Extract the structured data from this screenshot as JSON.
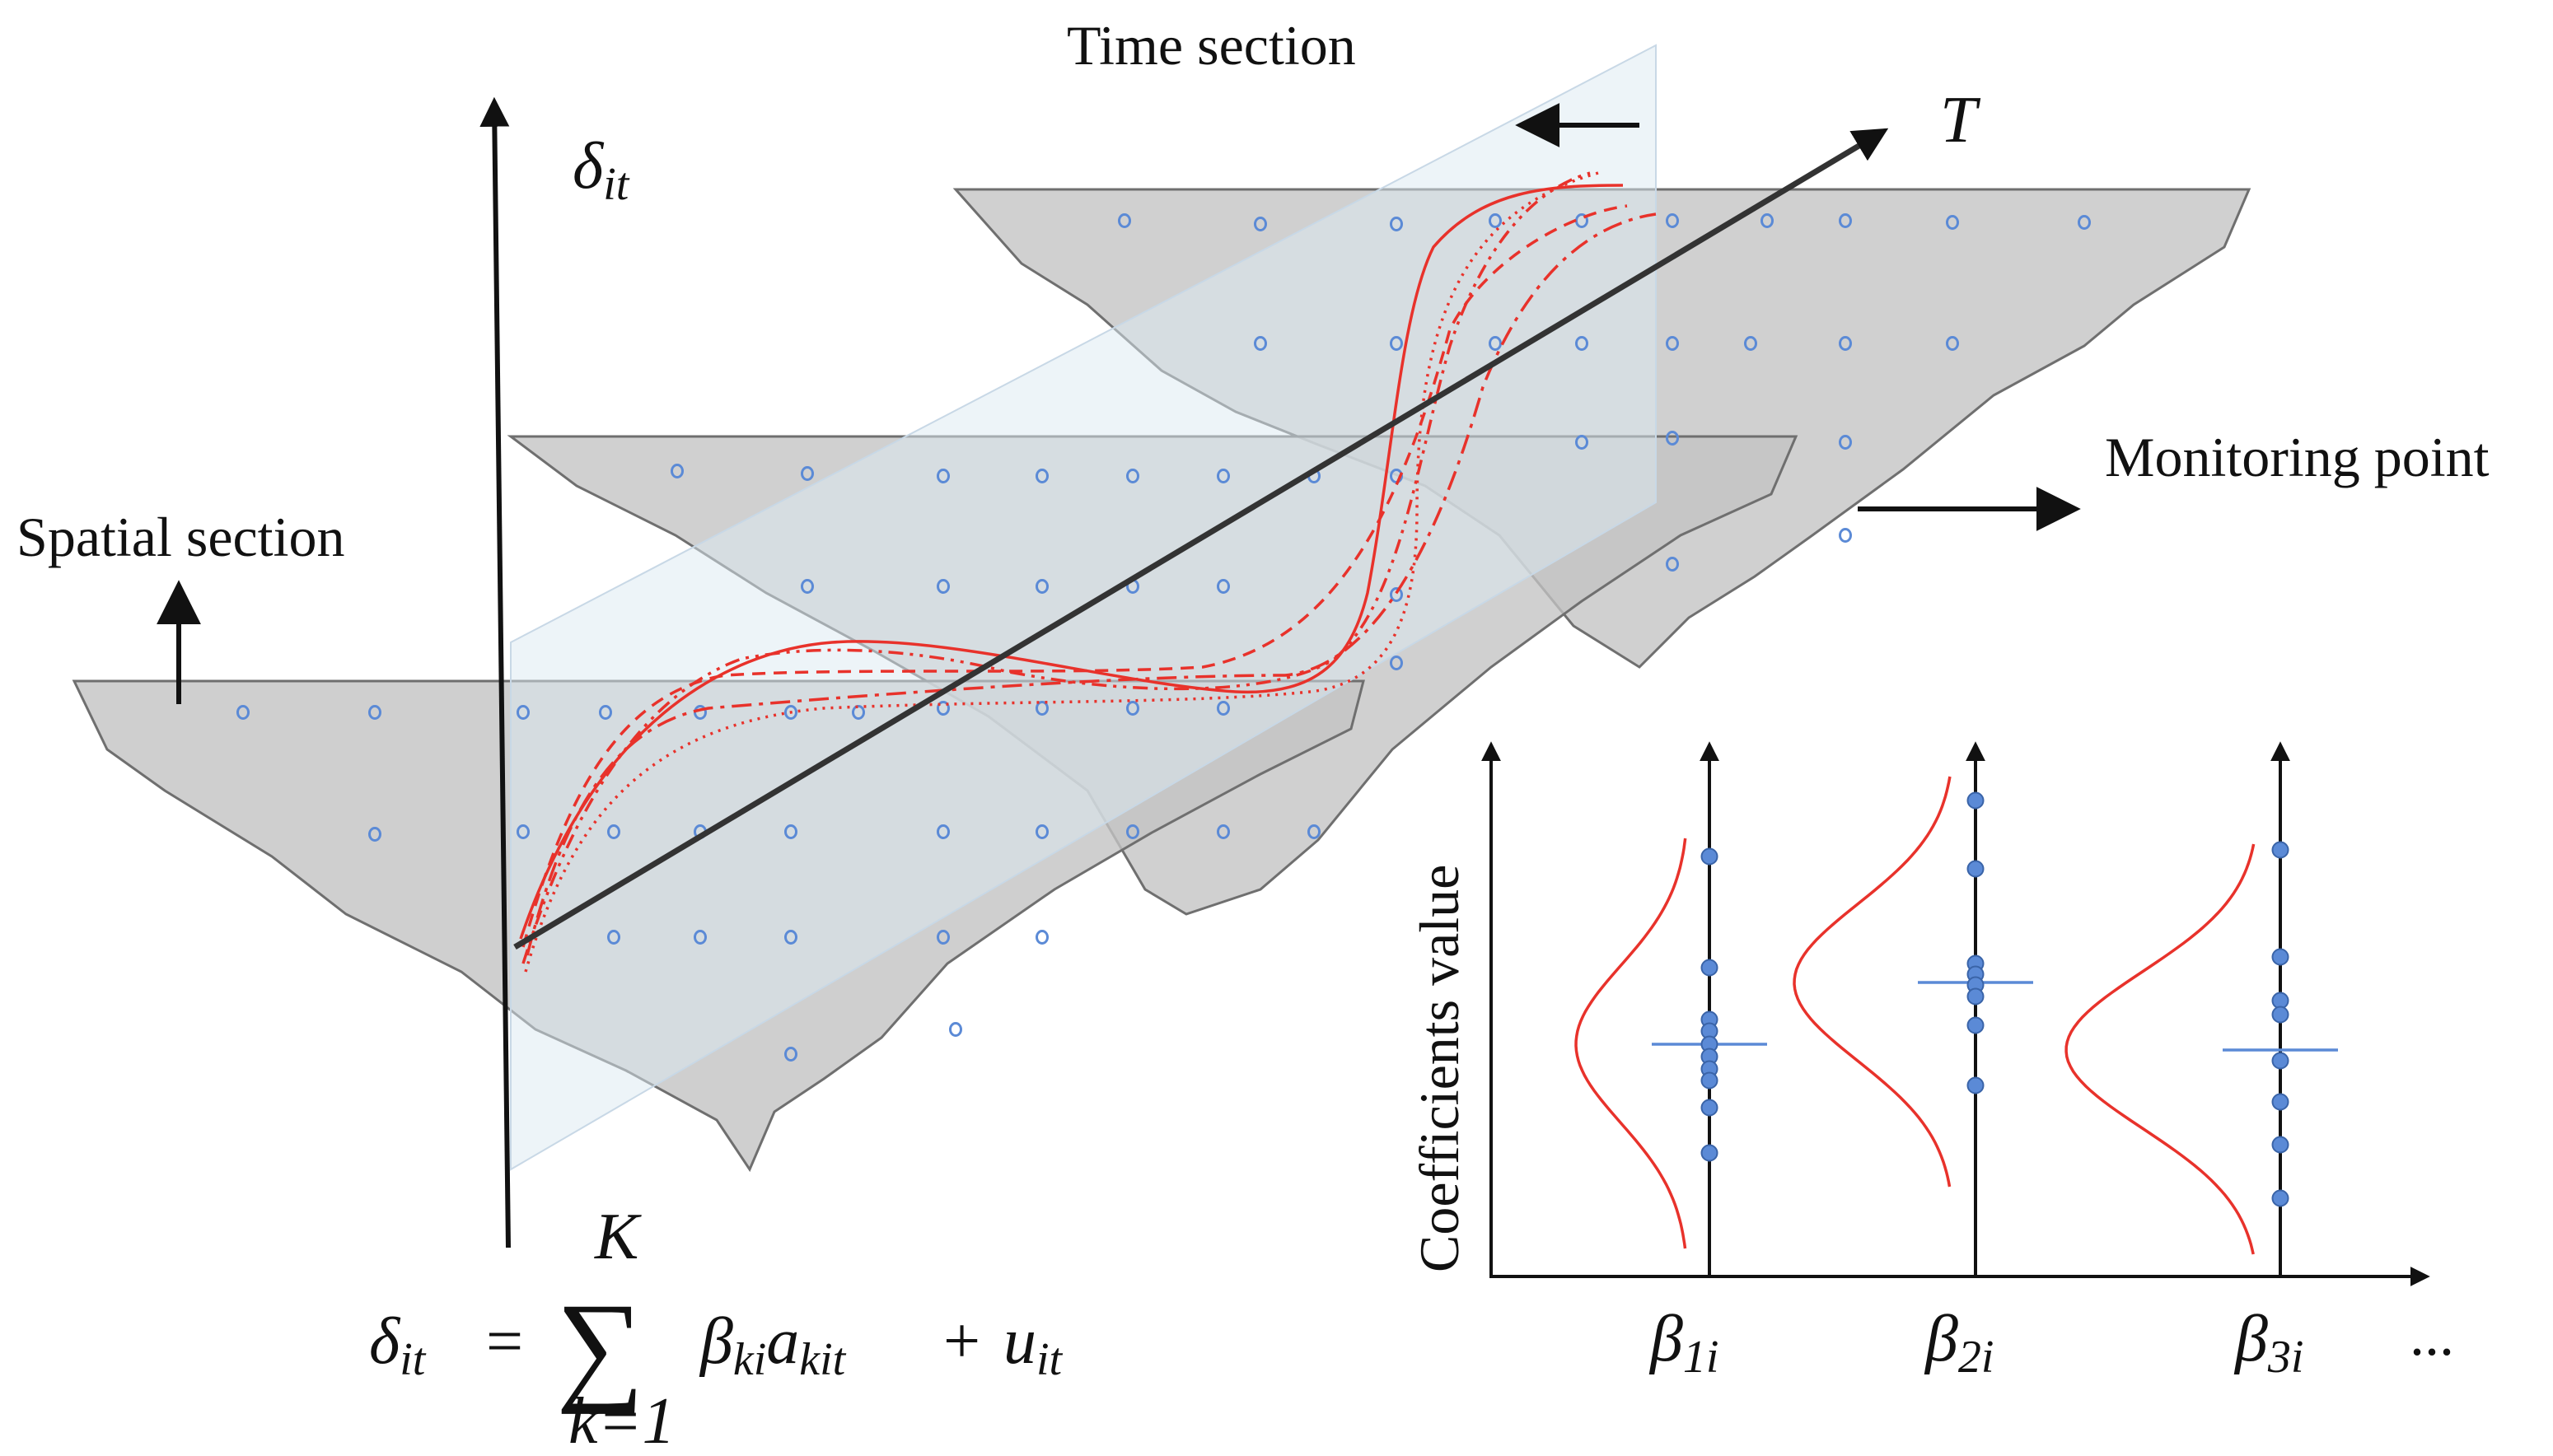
{
  "labels": {
    "time_section": "Time section",
    "spatial_section": "Spatial section",
    "monitoring_point": "Monitoring point",
    "coefficients_value": "Coefficients value",
    "ellipsis": "..."
  },
  "axes": {
    "vertical_base": "δ",
    "vertical_sub": "it",
    "time_axis": "T"
  },
  "formula": {
    "lhs": "δ",
    "lhs_sub": "it",
    "equals": "=",
    "sum": "∑",
    "upper": "K",
    "lower": "k=1",
    "term": "β",
    "term_sub": "ki",
    "term2": "a",
    "term2_sub": "kit",
    "plus": "+",
    "resid": "u",
    "resid_sub": "it"
  },
  "coefficients": [
    {
      "base": "β",
      "sub": "1i"
    },
    {
      "base": "β",
      "sub": "2i"
    },
    {
      "base": "β",
      "sub": "3i"
    }
  ],
  "colors": {
    "section_fill": "#c3c3c3",
    "section_stroke": "#6f6f6f",
    "plane_fill": "#dce9f2",
    "curve": "#e8322b",
    "point": "#5b8ad6",
    "axis": "#111111"
  }
}
